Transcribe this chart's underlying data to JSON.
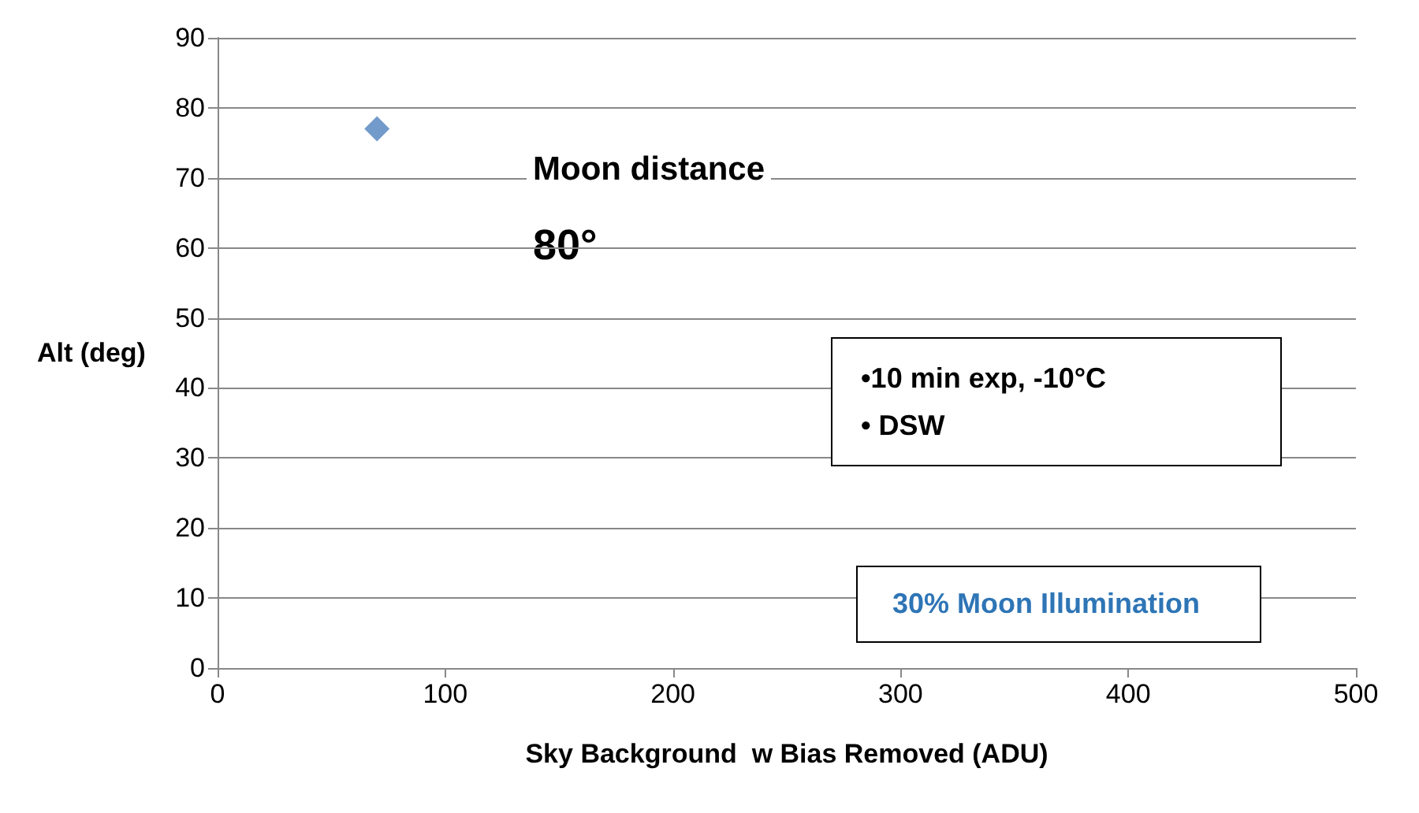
{
  "chart_data": {
    "type": "scatter",
    "xlabel": "Sky Background  w Bias Removed (ADU)",
    "ylabel": "Alt (deg)",
    "x": [
      70
    ],
    "series": [
      {
        "color": "#4f81bd",
        "values": [
          77
        ]
      }
    ],
    "xlim": [
      0,
      500
    ],
    "xticks": [
      0,
      100,
      200,
      300,
      400,
      500
    ],
    "ylim": [
      0,
      90
    ],
    "yticks": [
      0,
      10,
      20,
      30,
      40,
      50,
      60,
      70,
      80,
      90
    ],
    "grid": "y",
    "marker": "diamond",
    "annotations": [
      "Moon distance",
      "80°",
      "•10 min exp, -10°C",
      "• DSW",
      "30% Moon Illumination"
    ]
  }
}
